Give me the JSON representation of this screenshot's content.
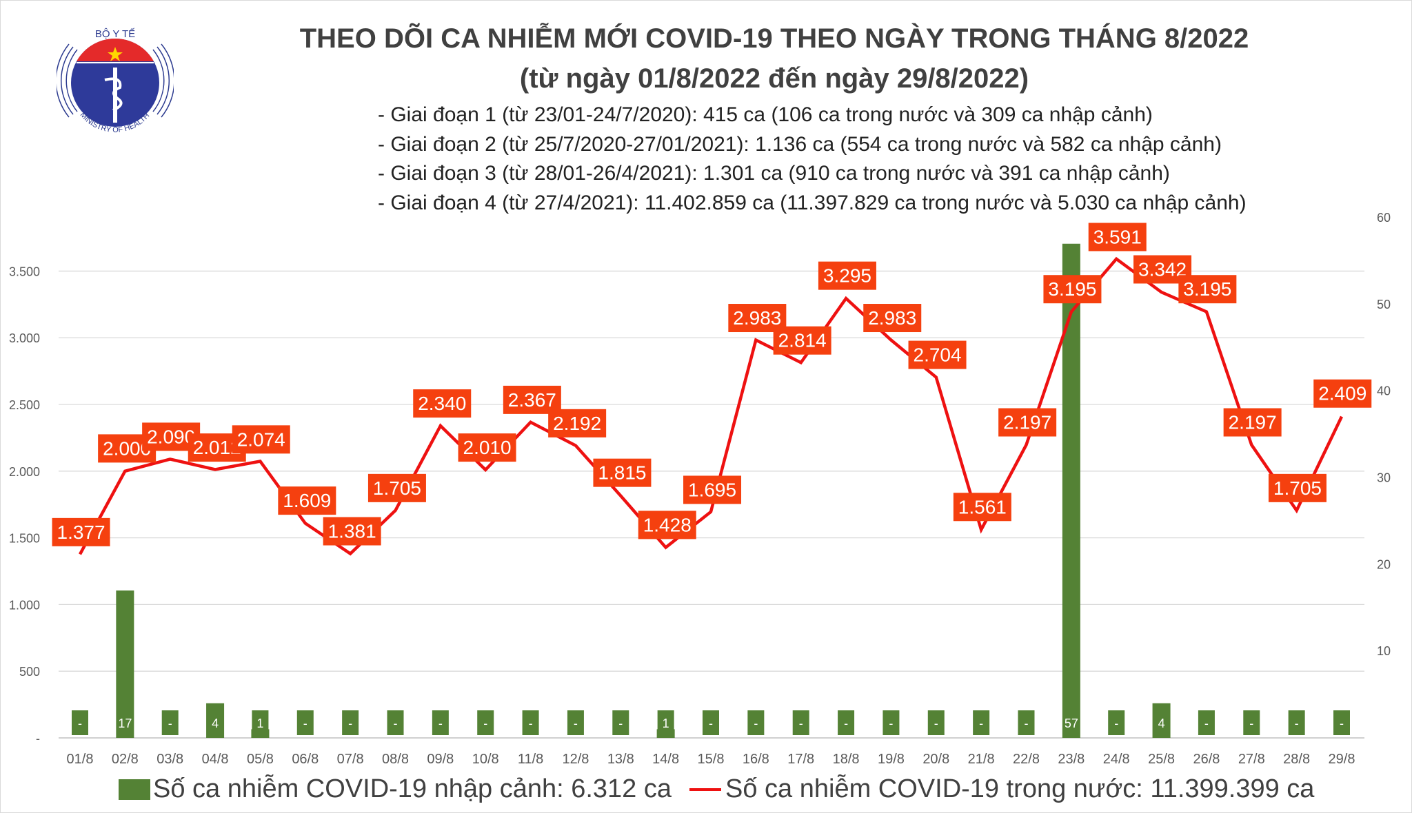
{
  "logo": {
    "text_top": "BỘ Y TẾ",
    "text_bottom": "MINISTRY OF HEALTH"
  },
  "title": {
    "line1": "THEO DÕI CA NHIỄM MỚI COVID-19 THEO NGÀY TRONG THÁNG 8/2022",
    "line2": "(từ ngày 01/8/2022 đến ngày 29/8/2022)"
  },
  "stages": [
    "- Giai đoạn 1 (từ 23/01-24/7/2020): 415 ca (106 ca trong nước và 309 ca nhập cảnh)",
    "- Giai đoạn 2 (từ 25/7/2020-27/01/2021): 1.136 ca (554 ca trong nước và 582 ca nhập cảnh)",
    "- Giai đoạn 3 (từ 28/01-26/4/2021): 1.301 ca (910 ca trong nước và 391 ca nhập cảnh)",
    "- Giai đoạn 4 (từ 27/4/2021): 11.402.859 ca (11.397.829 ca trong nước và 5.030 ca nhập cảnh)"
  ],
  "chart_data": {
    "type": "bar+line",
    "categories": [
      "01/8",
      "02/8",
      "03/8",
      "04/8",
      "05/8",
      "06/8",
      "07/8",
      "08/8",
      "09/8",
      "10/8",
      "11/8",
      "12/8",
      "13/8",
      "14/8",
      "15/8",
      "16/8",
      "17/8",
      "18/8",
      "19/8",
      "20/8",
      "21/8",
      "22/8",
      "23/8",
      "24/8",
      "25/8",
      "26/8",
      "27/8",
      "28/8",
      "29/8"
    ],
    "series": [
      {
        "name": "Số ca nhiễm COVID-19 nhập cảnh: 6.312 ca",
        "type": "bar",
        "axis": "right",
        "color": "#548235",
        "values": [
          0,
          17,
          0,
          4,
          1,
          0,
          0,
          0,
          0,
          0,
          0,
          0,
          0,
          1,
          0,
          0,
          0,
          0,
          0,
          0,
          0,
          0,
          57,
          0,
          4,
          0,
          0,
          0,
          0
        ],
        "labels": [
          "-",
          "17",
          "-",
          "4",
          "1",
          "-",
          "-",
          "-",
          "-",
          "-",
          "-",
          "-",
          "-",
          "1",
          "-",
          "-",
          "-",
          "-",
          "-",
          "-",
          "-",
          "-",
          "57",
          "-",
          "4",
          "-",
          "-",
          "-",
          "-"
        ]
      },
      {
        "name": "Số ca nhiễm COVID-19 trong nước: 11.399.399 ca",
        "type": "line",
        "axis": "left",
        "color": "#ee1111",
        "label_color": "#f5400f",
        "values": [
          1377,
          2000,
          2090,
          2012,
          2074,
          1609,
          1381,
          1705,
          2340,
          2010,
          2367,
          2192,
          1815,
          1428,
          1695,
          2983,
          2814,
          3295,
          2983,
          2704,
          1561,
          2197,
          3195,
          3591,
          3342,
          3195,
          2197,
          1705,
          2409
        ],
        "labels": [
          "1.377",
          "2.000",
          "2.090",
          "2.012",
          "2.074",
          "1.609",
          "1.381",
          "1.705",
          "2.340",
          "2.010",
          "2.367",
          "2.192",
          "1.815",
          "1.428",
          "1.695",
          "2.983",
          "2.814",
          "3.295",
          "2.983",
          "2.704",
          "1.561",
          "2.197",
          "3.195",
          "3.591",
          "3.342",
          "3.195",
          "2.197",
          "1.705",
          "2.409"
        ]
      }
    ],
    "y_left": {
      "ylim": [
        0,
        3900
      ],
      "ticks": [
        "-",
        "500",
        "1.000",
        "1.500",
        "2.000",
        "2.500",
        "3.000",
        "3.500"
      ],
      "tick_values": [
        0,
        500,
        1000,
        1500,
        2000,
        2500,
        3000,
        3500
      ]
    },
    "y_right": {
      "ylim": [
        0,
        60
      ],
      "ticks": [
        "10",
        "20",
        "30",
        "40",
        "50",
        "60"
      ],
      "tick_values": [
        10,
        20,
        30,
        40,
        50,
        60
      ]
    },
    "grid": true,
    "legend": "bottom"
  }
}
